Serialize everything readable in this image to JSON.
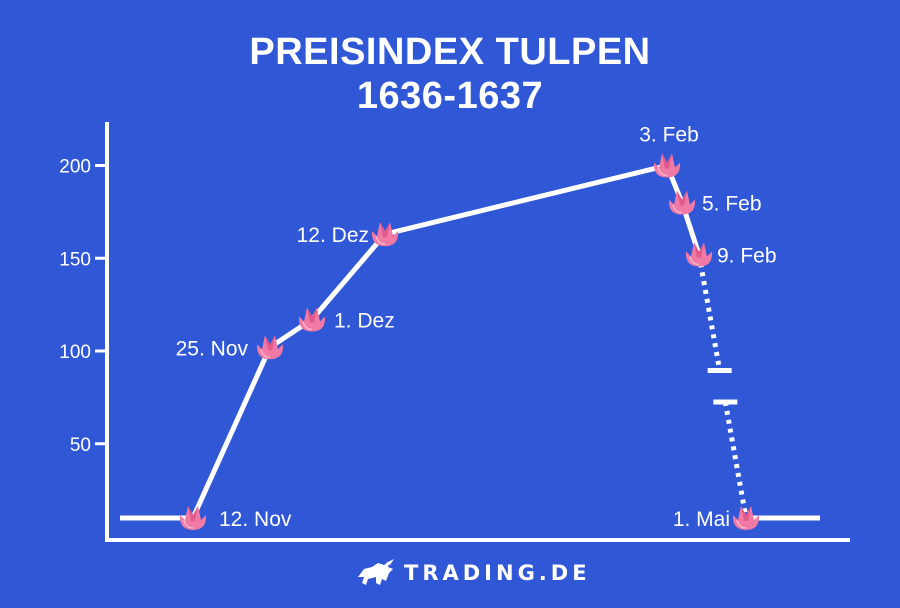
{
  "title_line1": "PREISINDEX TULPEN",
  "title_line2": "1636-1637",
  "brand": "TRADING.DE",
  "colors": {
    "background": "#2f57d6",
    "line": "#ffffff",
    "tulip": "#f07aa5"
  },
  "chart_data": {
    "type": "line",
    "title": "PREISINDEX TULPEN 1636-1637",
    "xlabel": "",
    "ylabel": "",
    "ylim": [
      0,
      220
    ],
    "yticks": [
      50,
      100,
      150,
      200
    ],
    "grid": false,
    "legend": "none",
    "series": [
      {
        "points": [
          {
            "label": "12. Nov",
            "y": 10
          },
          {
            "label": "25. Nov",
            "y": 102
          },
          {
            "label": "1. Dez",
            "y": 117
          },
          {
            "label": "12. Dez",
            "y": 163
          },
          {
            "label": "3. Feb",
            "y": 200
          },
          {
            "label": "5. Feb",
            "y": 180
          },
          {
            "label": "9. Feb",
            "y": 152
          },
          {
            "label": "1. Mai",
            "y": 10
          }
        ],
        "dashed_segment": [
          "9. Feb",
          "1. Mai"
        ]
      }
    ]
  }
}
